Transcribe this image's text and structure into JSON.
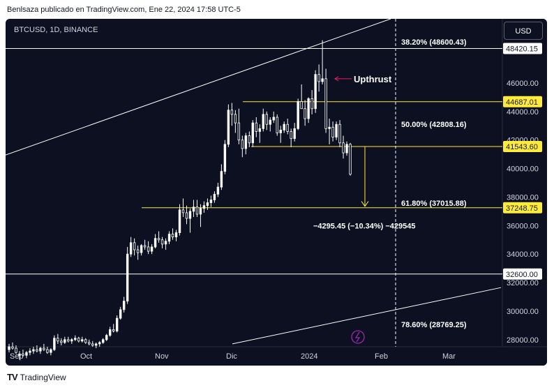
{
  "caption": "Benlsaza publicado en TradingView.com, Ene 22, 2024 17:58 UTC-5",
  "symbol": "BTCUSD, 1D, BINANCE",
  "currency_button": "USD",
  "footer_brand": "TradingView",
  "colors": {
    "background": "#0c1020",
    "up": "#ffffff",
    "down": "#ffffff",
    "yellow": "#ffeb3b",
    "white": "#ffffff",
    "axis_text": "#d1d4dc",
    "upthrust_arrow": "#e91e63"
  },
  "chart_data": {
    "type": "candlestick",
    "ylim": [
      27500,
      50500
    ],
    "y_ticks": [
      "28000.00",
      "30000.00",
      "32000.00",
      "34000.00",
      "36000.00",
      "38000.00",
      "40000.00",
      "42000.00",
      "44000.00",
      "46000.00"
    ],
    "x_ticks": [
      "Sep",
      "Oct",
      "Nov",
      "Dic",
      "2024",
      "Feb",
      "Mar"
    ],
    "price_labels": [
      {
        "value": 48420.15,
        "text": "48420.15",
        "style": "white"
      },
      {
        "value": 44687.01,
        "text": "44687.01",
        "style": "yellow"
      },
      {
        "value": 41543.6,
        "text": "41543.60",
        "style": "yellow"
      },
      {
        "value": 37248.75,
        "text": "37248.75",
        "style": "yellow"
      },
      {
        "value": 32600.0,
        "text": "32600.00",
        "style": "white"
      }
    ],
    "fib_labels": [
      {
        "value": 48600,
        "text": "38.20% (48600.43)"
      },
      {
        "value": 42808,
        "text": "50.00% (42808.16)"
      },
      {
        "value": 37016,
        "text": "61.80% (37015.88)"
      },
      {
        "value": 28769,
        "text": "78.60% (28769.25)"
      }
    ],
    "annotations": {
      "upthrust": "Upthrust",
      "measure": "−4295.45 (−10.34%) −429545"
    },
    "candles": [
      [
        27300,
        27700,
        27100,
        27500
      ],
      [
        27500,
        27800,
        27300,
        27400
      ],
      [
        27400,
        27600,
        27000,
        27100
      ],
      [
        26900,
        27200,
        26600,
        27000
      ],
      [
        27000,
        27300,
        26800,
        26900
      ],
      [
        26900,
        27200,
        26700,
        27100
      ],
      [
        27100,
        27400,
        26900,
        27200
      ],
      [
        27200,
        27500,
        27000,
        27300
      ],
      [
        27300,
        27600,
        27100,
        27200
      ],
      [
        27200,
        27500,
        27000,
        27400
      ],
      [
        27400,
        27700,
        27200,
        27300
      ],
      [
        27300,
        27500,
        27000,
        27100
      ],
      [
        27100,
        27400,
        26900,
        27300
      ],
      [
        27300,
        28300,
        27200,
        28100
      ],
      [
        28100,
        28400,
        27700,
        27900
      ],
      [
        27900,
        28100,
        27600,
        27800
      ],
      [
        27800,
        28200,
        27700,
        28000
      ],
      [
        28000,
        28200,
        27800,
        27900
      ],
      [
        27900,
        28100,
        27700,
        28000
      ],
      [
        28000,
        28300,
        27900,
        28100
      ],
      [
        28100,
        28200,
        27800,
        27900
      ],
      [
        27900,
        28200,
        27800,
        28000
      ],
      [
        28000,
        28100,
        27700,
        27800
      ],
      [
        27800,
        28000,
        27600,
        27700
      ],
      [
        27700,
        27900,
        27500,
        27600
      ],
      [
        27600,
        27800,
        27400,
        27700
      ],
      [
        27700,
        27900,
        27500,
        27800
      ],
      [
        27800,
        28100,
        27700,
        28000
      ],
      [
        28000,
        28400,
        27900,
        28300
      ],
      [
        28300,
        28900,
        28200,
        28700
      ],
      [
        28700,
        29100,
        28500,
        28600
      ],
      [
        28600,
        29700,
        28500,
        29500
      ],
      [
        29500,
        30300,
        29400,
        30100
      ],
      [
        30100,
        31000,
        29900,
        30700
      ],
      [
        30700,
        34500,
        30500,
        34000
      ],
      [
        34000,
        35200,
        33800,
        34800
      ],
      [
        34800,
        35100,
        33900,
        34300
      ],
      [
        34300,
        34600,
        33600,
        34100
      ],
      [
        34100,
        34700,
        33900,
        34600
      ],
      [
        34600,
        35000,
        34300,
        34500
      ],
      [
        34500,
        34900,
        34000,
        34200
      ],
      [
        34200,
        34700,
        34000,
        34500
      ],
      [
        34500,
        35400,
        34400,
        35100
      ],
      [
        35100,
        35600,
        34800,
        35000
      ],
      [
        35000,
        35200,
        34400,
        34700
      ],
      [
        34700,
        35100,
        34300,
        34900
      ],
      [
        34900,
        35600,
        34700,
        35400
      ],
      [
        35400,
        35800,
        35000,
        35200
      ],
      [
        35200,
        35700,
        34900,
        35500
      ],
      [
        35500,
        37500,
        35300,
        37100
      ],
      [
        37100,
        37900,
        36600,
        36900
      ],
      [
        36900,
        37400,
        36100,
        36500
      ],
      [
        36500,
        37200,
        35500,
        37000
      ],
      [
        37000,
        37800,
        36600,
        37300
      ],
      [
        37300,
        37800,
        36600,
        36800
      ],
      [
        36800,
        37500,
        35900,
        37200
      ],
      [
        37200,
        37700,
        36900,
        37400
      ],
      [
        37400,
        37900,
        37100,
        37600
      ],
      [
        37600,
        38100,
        37300,
        37800
      ],
      [
        37800,
        38400,
        37600,
        38200
      ],
      [
        38200,
        39000,
        38000,
        38700
      ],
      [
        38700,
        40300,
        38500,
        39800
      ],
      [
        39800,
        42000,
        39600,
        41700
      ],
      [
        41700,
        44500,
        41500,
        44100
      ],
      [
        44100,
        44600,
        43000,
        43800
      ],
      [
        43800,
        44100,
        42500,
        43200
      ],
      [
        43200,
        44200,
        41700,
        42000
      ],
      [
        42000,
        42300,
        40800,
        41400
      ],
      [
        41400,
        42500,
        41000,
        42300
      ],
      [
        42300,
        42600,
        41500,
        41800
      ],
      [
        41800,
        43400,
        41500,
        43200
      ],
      [
        43200,
        43600,
        42200,
        42600
      ],
      [
        42600,
        43100,
        41800,
        42800
      ],
      [
        42800,
        44200,
        42600,
        43800
      ],
      [
        43800,
        44000,
        42700,
        43100
      ],
      [
        43100,
        43600,
        42600,
        43400
      ],
      [
        43400,
        44000,
        43200,
        43600
      ],
      [
        43600,
        43800,
        42300,
        42500
      ],
      [
        42500,
        43000,
        41800,
        42700
      ],
      [
        42700,
        43300,
        42500,
        43100
      ],
      [
        43100,
        43500,
        42400,
        42600
      ],
      [
        42600,
        42800,
        41500,
        42100
      ],
      [
        42100,
        43200,
        41900,
        42800
      ],
      [
        42800,
        44900,
        42700,
        44700
      ],
      [
        44700,
        45900,
        44300,
        44200
      ],
      [
        44200,
        44800,
        43000,
        43500
      ],
      [
        43500,
        45000,
        43200,
        44900
      ],
      [
        44900,
        45500,
        43800,
        44200
      ],
      [
        44200,
        46900,
        43900,
        46600
      ],
      [
        46600,
        47300,
        45400,
        46100
      ],
      [
        46100,
        49000,
        45900,
        46300
      ],
      [
        46300,
        47000,
        42500,
        42800
      ],
      [
        42800,
        43500,
        41700,
        42900
      ],
      [
        42900,
        43300,
        41900,
        42200
      ],
      [
        42200,
        43300,
        42000,
        43100
      ],
      [
        43100,
        43400,
        41500,
        41800
      ],
      [
        41800,
        42300,
        40700,
        41100
      ],
      [
        41100,
        41900,
        40900,
        41700
      ],
      [
        41700,
        41800,
        39500,
        39600
      ]
    ]
  }
}
